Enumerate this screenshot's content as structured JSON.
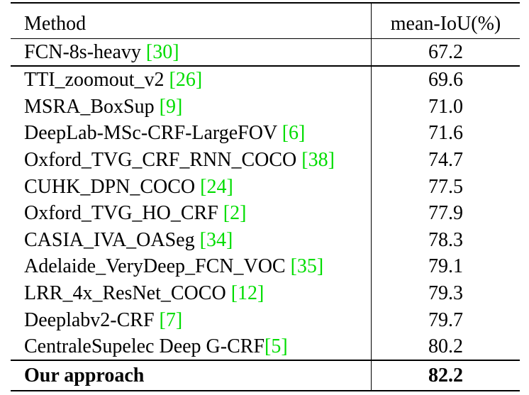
{
  "header": {
    "method": "Method",
    "metric": "mean-IoU(%)"
  },
  "rows": [
    {
      "name": "FCN-8s-heavy ",
      "ref": "[30]",
      "value": "67.2"
    },
    {
      "name": "TTI_zoomout_v2 ",
      "ref": "[26]",
      "value": "69.6"
    },
    {
      "name": "MSRA_BoxSup ",
      "ref": "[9]",
      "value": "71.0"
    },
    {
      "name": "DeepLab-MSc-CRF-LargeFOV ",
      "ref": "[6]",
      "value": "71.6"
    },
    {
      "name": "Oxford_TVG_CRF_RNN_COCO ",
      "ref": "[38]",
      "value": "74.7"
    },
    {
      "name": "CUHK_DPN_COCO ",
      "ref": "[24]",
      "value": "77.5"
    },
    {
      "name": "Oxford_TVG_HO_CRF ",
      "ref": "[2]",
      "value": "77.9"
    },
    {
      "name": "CASIA_IVA_OASeg ",
      "ref": "[34]",
      "value": "78.3"
    },
    {
      "name": "Adelaide_VeryDeep_FCN_VOC ",
      "ref": "[35]",
      "value": "79.1"
    },
    {
      "name": "LRR_4x_ResNet_COCO ",
      "ref": "[12]",
      "value": "79.3"
    },
    {
      "name": "Deeplabv2-CRF ",
      "ref": "[7]",
      "value": "79.7"
    },
    {
      "name": "CentraleSupelec Deep G-CRF",
      "ref": "[5]",
      "value": "80.2"
    }
  ],
  "final": {
    "name": "Our approach",
    "value": "82.2"
  },
  "colors": {
    "reference": "#00dd00",
    "text": "#000000"
  }
}
